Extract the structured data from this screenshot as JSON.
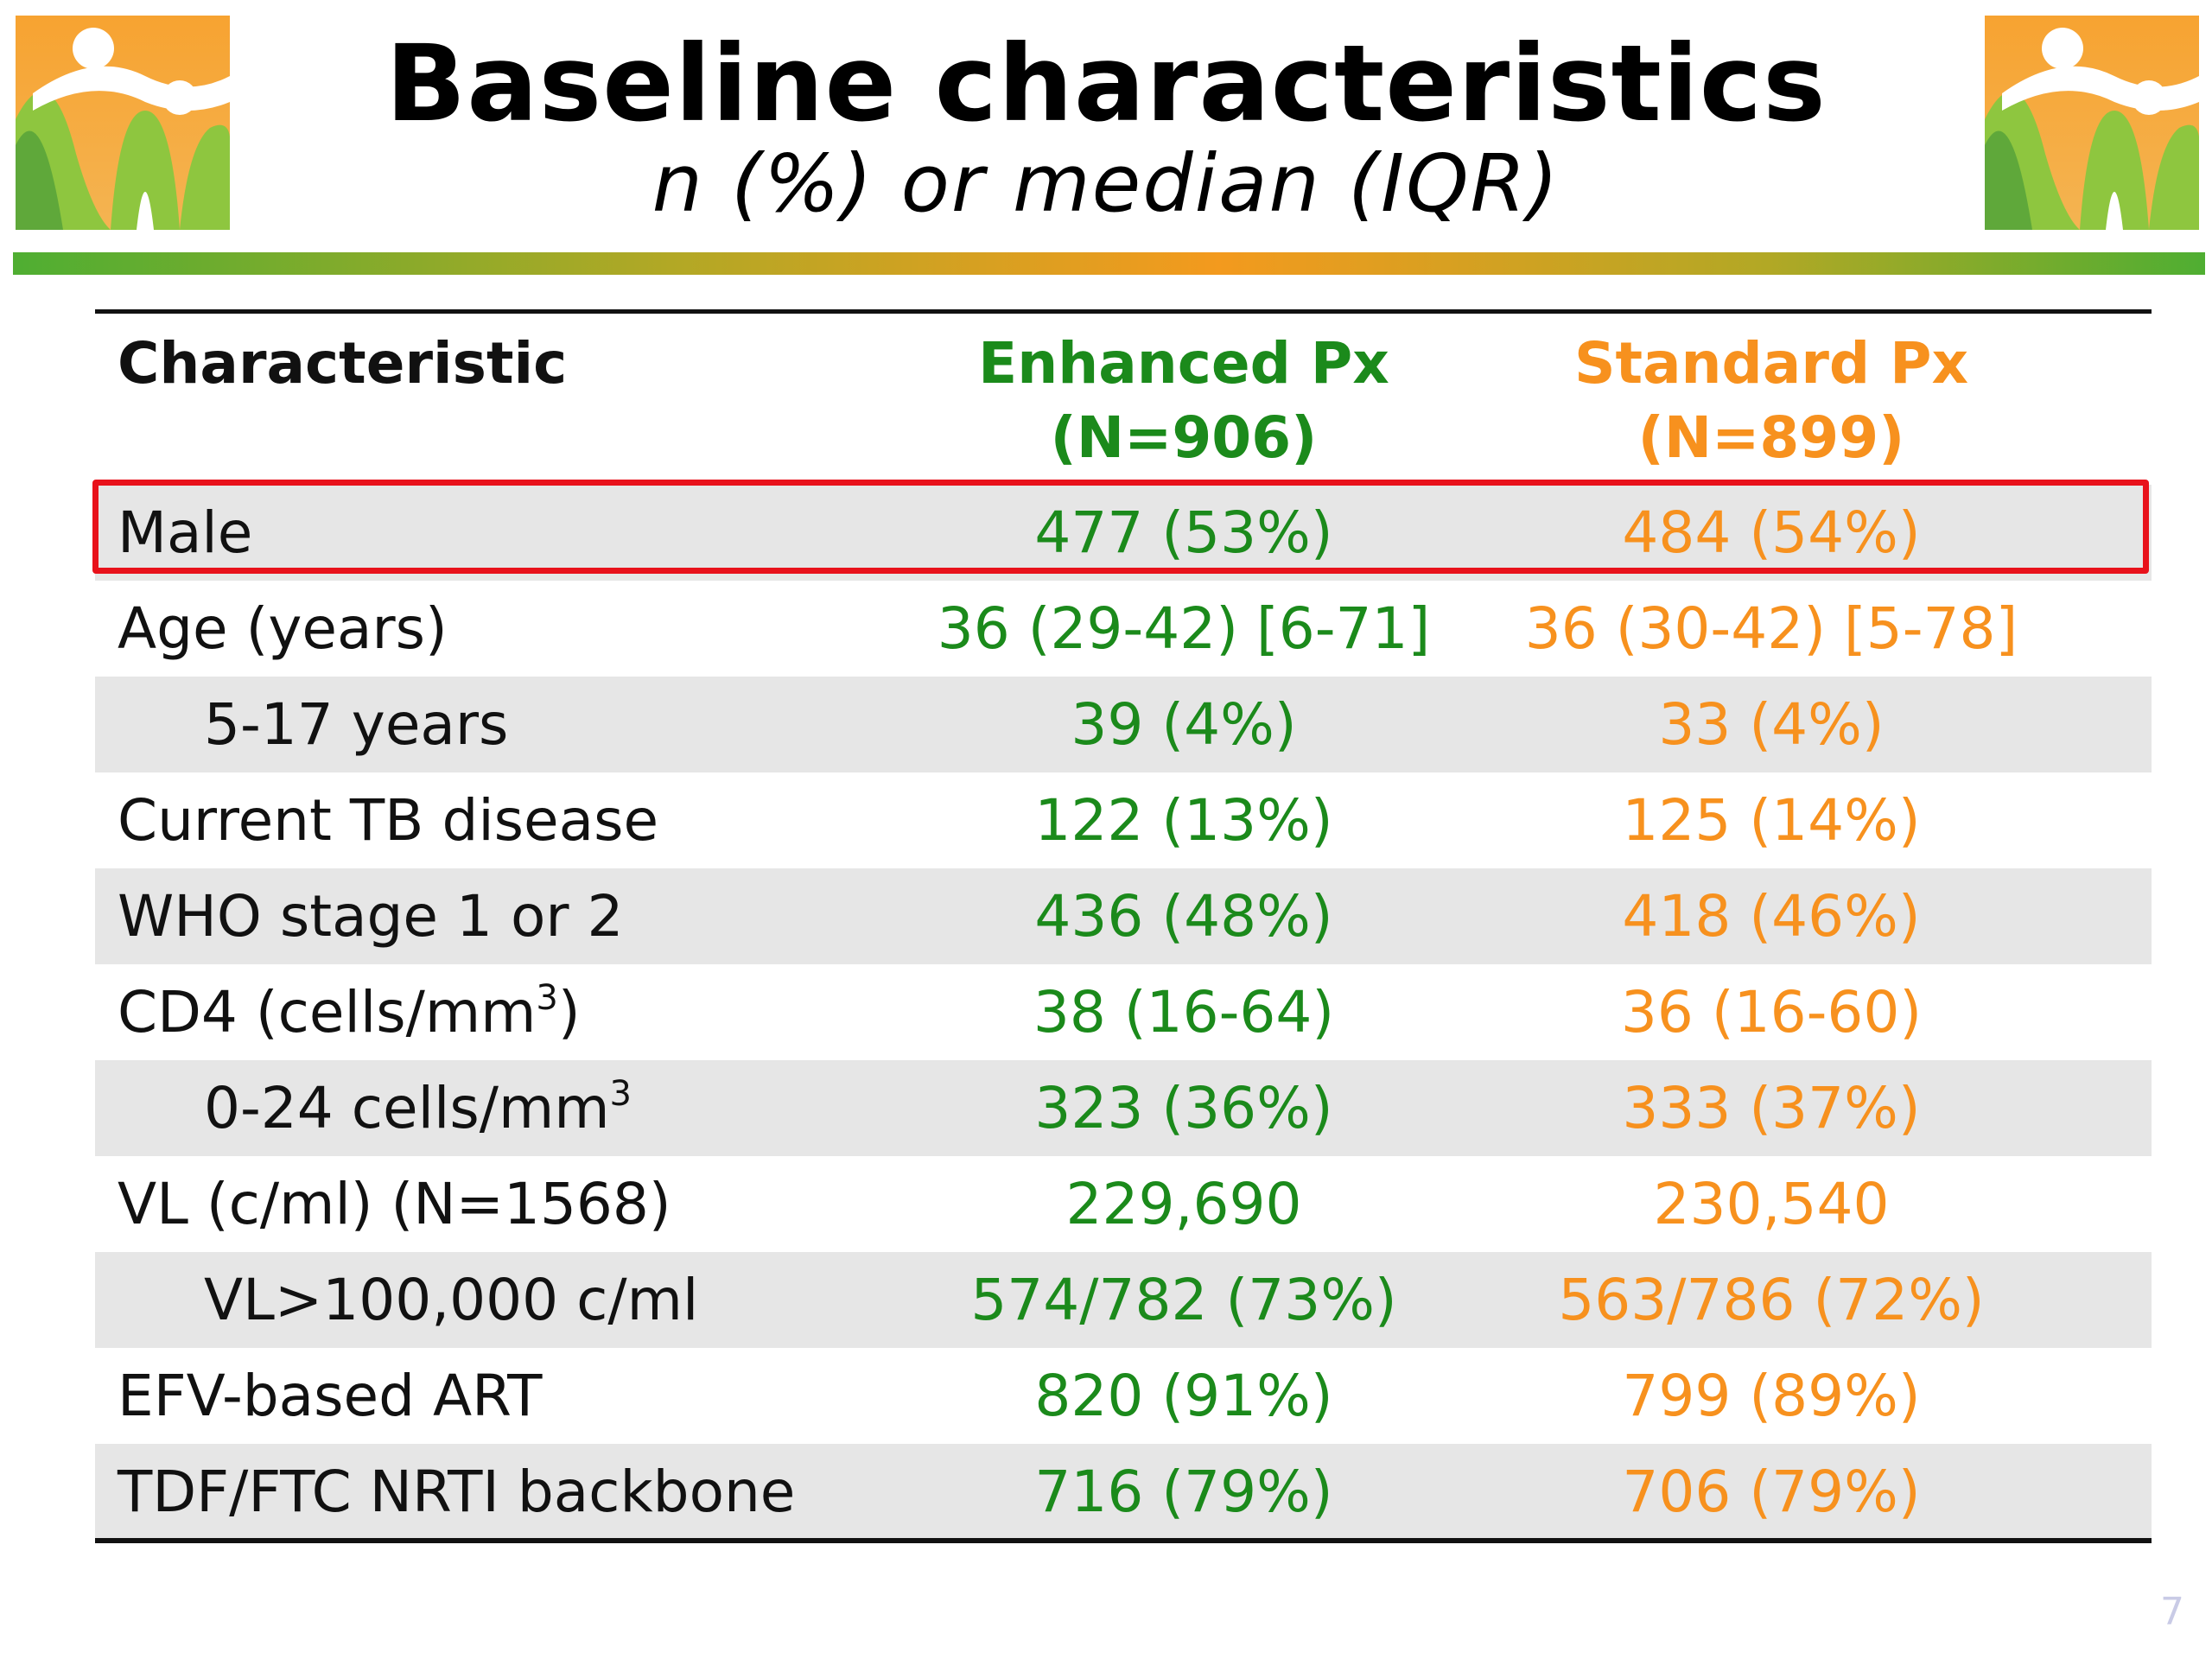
{
  "slide": {
    "title": "Baseline characteristics",
    "subtitle": "n (%) or median (IQR)",
    "page_number": "7"
  },
  "colors": {
    "enhanced": "#1b8a1b",
    "standard": "#f7911e",
    "highlight": "#e8121b",
    "row_shade": "#e6e6e6"
  },
  "icons": {
    "logo_left": "family-logo-icon",
    "logo_right": "family-logo-icon"
  },
  "table": {
    "headers": {
      "characteristic": "Characteristic",
      "enhanced_line1": "Enhanced Px",
      "enhanced_line2": "(N=906)",
      "standard_line1": "Standard Px",
      "standard_line2": "(N=899)"
    },
    "rows": [
      {
        "label": "Male",
        "enhanced": "477 (53%)",
        "standard": "484 (54%)",
        "highlighted": true
      },
      {
        "label": "Age (years)",
        "enhanced": "36 (29-42) [6-71]",
        "standard": "36 (30-42) [5-78]"
      },
      {
        "label": "5-17 years",
        "enhanced": "39 (4%)",
        "standard": "33 (4%)",
        "indent": true
      },
      {
        "label": "Current TB disease",
        "enhanced": "122 (13%)",
        "standard": "125 (14%)"
      },
      {
        "label": "WHO stage 1 or 2",
        "enhanced": "436 (48%)",
        "standard": "418 (46%)"
      },
      {
        "label": "CD4 (cells/mm",
        "label_sup": "3",
        "label_after": ")",
        "enhanced": "38 (16-64)",
        "standard": "36 (16-60)"
      },
      {
        "label": "0-24 cells/mm",
        "label_sup": "3",
        "label_after": "",
        "enhanced": "323 (36%)",
        "standard": "333 (37%)",
        "indent": true
      },
      {
        "label": "VL (c/ml) (N=1568)",
        "enhanced": "229,690",
        "standard": "230,540"
      },
      {
        "label": "VL>100,000 c/ml",
        "enhanced": "574/782 (73%)",
        "standard": "563/786 (72%)",
        "indent": true
      },
      {
        "label": "EFV-based ART",
        "enhanced": "820 (91%)",
        "standard": "799 (89%)"
      },
      {
        "label": "TDF/FTC NRTI backbone",
        "enhanced": "716 (79%)",
        "standard": "706 (79%)"
      }
    ]
  }
}
